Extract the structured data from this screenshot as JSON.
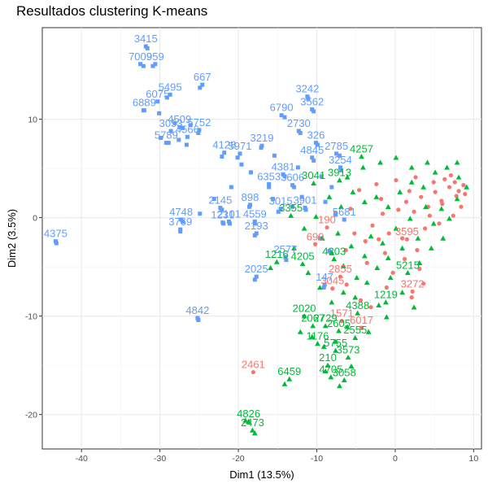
{
  "chart_data": {
    "type": "scatter",
    "title": "Resultados clustering K-means",
    "xlabel": "Dim1 (13.5%)",
    "ylabel": "Dim2 (3.5%)",
    "xlim": [
      -45,
      11
    ],
    "ylim": [
      -23.5,
      19.3
    ],
    "x_ticks": [
      -40,
      -30,
      -20,
      -10,
      0,
      10
    ],
    "y_ticks": [
      -20,
      -10,
      0,
      10
    ],
    "grid": true,
    "legend": "none",
    "clusters": [
      {
        "color": "#F8766D",
        "shape": "circle",
        "labeled_points": [
          {
            "x": -18.1,
            "y": -15.7,
            "label": "2461"
          },
          {
            "x": -10.2,
            "y": -2.7,
            "label": "690"
          },
          {
            "x": -7.0,
            "y": -6.0,
            "label": "2855"
          },
          {
            "x": -8.0,
            "y": -7.2,
            "label": "3045"
          },
          {
            "x": -6.8,
            "y": -10.5,
            "label": "1571"
          },
          {
            "x": -4.3,
            "y": -11.2,
            "label": "6017"
          },
          {
            "x": 1.5,
            "y": -2.2,
            "label": "3595"
          },
          {
            "x": 2.2,
            "y": -7.5,
            "label": "3272"
          },
          {
            "x": -8.7,
            "y": -1.0,
            "label": "190"
          }
        ],
        "unlabeled_points": [
          [
            -5.2,
            -1.6
          ],
          [
            -3.8,
            -2.4
          ],
          [
            -2.9,
            -0.8
          ],
          [
            -1.6,
            0.4
          ],
          [
            -0.8,
            -1.6
          ],
          [
            0.4,
            0.8
          ],
          [
            1.4,
            1.6
          ],
          [
            2.4,
            0.6
          ],
          [
            3.3,
            2.1
          ],
          [
            4.2,
            1.1
          ],
          [
            5.1,
            2.6
          ],
          [
            6.0,
            1.4
          ],
          [
            6.9,
            3.1
          ],
          [
            7.8,
            2.2
          ],
          [
            8.7,
            3.3
          ],
          [
            -4.6,
            2.8
          ],
          [
            -2.4,
            3.4
          ],
          [
            0.1,
            3.8
          ],
          [
            2.6,
            4.1
          ],
          [
            4.9,
            3.6
          ],
          [
            7.1,
            4.3
          ],
          [
            8.4,
            1.1
          ],
          [
            -3.6,
            -4.6
          ],
          [
            -1.3,
            -3.6
          ],
          [
            1.2,
            -4.2
          ],
          [
            3.1,
            -5.2
          ],
          [
            3.6,
            -6.7
          ],
          [
            2.1,
            -8.1
          ],
          [
            -1.1,
            -7.1
          ],
          [
            -3.1,
            -9.1
          ],
          [
            -6.2,
            -6.8
          ],
          [
            -4.4,
            -8.4
          ],
          [
            5.6,
            -0.6
          ],
          [
            7.4,
            0.2
          ],
          [
            -7.6,
            0.5
          ],
          [
            -6.3,
            -3.3
          ],
          [
            0.9,
            -2.1
          ],
          [
            3.8,
            -1.1
          ],
          [
            6.3,
            3.9
          ],
          [
            8.1,
            2.7
          ],
          [
            -1.8,
            1.9
          ],
          [
            1.8,
            2.7
          ],
          [
            4.4,
            0.2
          ],
          [
            -0.3,
            -5.6
          ],
          [
            2.8,
            -3.3
          ],
          [
            -5.7,
            0.9
          ],
          [
            -2.1,
            -2.2
          ],
          [
            5.9,
            1.7
          ],
          [
            7.6,
            3.6
          ],
          [
            8.9,
            2.4
          ]
        ]
      },
      {
        "color": "#00BA38",
        "shape": "triangle",
        "labeled_points": [
          {
            "x": -13.3,
            "y": 0.2,
            "label": "3355"
          },
          {
            "x": -15.1,
            "y": -4.5,
            "label": "1216"
          },
          {
            "x": -11.6,
            "y": -10.0,
            "label": "2020"
          },
          {
            "x": -10.5,
            "y": -11.0,
            "label": "2067"
          },
          {
            "x": -9.9,
            "y": -12.8,
            "label": "1176"
          },
          {
            "x": -8.9,
            "y": -11.0,
            "label": "2729"
          },
          {
            "x": -7.2,
            "y": -11.5,
            "label": "2605"
          },
          {
            "x": -5.1,
            "y": -12.2,
            "label": "2555"
          },
          {
            "x": -7.6,
            "y": -13.5,
            "label": "5755"
          },
          {
            "x": -6.0,
            "y": -14.2,
            "label": "3573"
          },
          {
            "x": -8.6,
            "y": -15.0,
            "label": "210"
          },
          {
            "x": -8.2,
            "y": -16.2,
            "label": "4705"
          },
          {
            "x": -6.5,
            "y": -16.5,
            "label": "3058"
          },
          {
            "x": -13.5,
            "y": -16.4,
            "label": "6459"
          },
          {
            "x": -18.7,
            "y": -20.7,
            "label": "4826"
          },
          {
            "x": -18.2,
            "y": -21.6,
            "label": "2473"
          },
          {
            "x": -11.8,
            "y": -4.7,
            "label": "4205"
          },
          {
            "x": -10.4,
            "y": 3.5,
            "label": "3041"
          },
          {
            "x": -7.1,
            "y": 3.8,
            "label": "3913"
          },
          {
            "x": -4.3,
            "y": 6.2,
            "label": "4257"
          },
          {
            "x": 1.6,
            "y": -5.6,
            "label": "5215"
          },
          {
            "x": -7.8,
            "y": -4.2,
            "label": "4303"
          },
          {
            "x": -4.8,
            "y": -9.7,
            "label": "4388"
          },
          {
            "x": -1.2,
            "y": -8.6,
            "label": "1219"
          }
        ],
        "unlabeled_points": [
          [
            -9.3,
            -2.1
          ],
          [
            -8.1,
            -3.6
          ],
          [
            -7.3,
            -1.6
          ],
          [
            -6.6,
            -4.9
          ],
          [
            -5.6,
            -2.9
          ],
          [
            -4.9,
            -6.1
          ],
          [
            -3.9,
            -3.9
          ],
          [
            -3.1,
            -1.9
          ],
          [
            -2.3,
            -5.1
          ],
          [
            -1.6,
            -2.6
          ],
          [
            -0.9,
            -4.1
          ],
          [
            0.1,
            -1.1
          ],
          [
            0.9,
            -3.1
          ],
          [
            1.9,
            -0.1
          ],
          [
            2.9,
            -2.1
          ],
          [
            3.9,
            1.1
          ],
          [
            4.9,
            -0.6
          ],
          [
            5.9,
            0.9
          ],
          [
            6.9,
            -0.1
          ],
          [
            7.9,
            1.9
          ],
          [
            -8.4,
            2.1
          ],
          [
            -6.9,
            1.1
          ],
          [
            -5.4,
            2.6
          ],
          [
            -3.9,
            1.6
          ],
          [
            -2.4,
            2.1
          ],
          [
            -0.9,
            1.1
          ],
          [
            0.6,
            2.6
          ],
          [
            2.1,
            3.6
          ],
          [
            3.6,
            3.1
          ],
          [
            5.1,
            4.6
          ],
          [
            6.6,
            5.1
          ],
          [
            8.1,
            4.1
          ],
          [
            9.1,
            3.1
          ],
          [
            -11.1,
            -5.6
          ],
          [
            -9.6,
            -7.1
          ],
          [
            -8.1,
            -8.6
          ],
          [
            -6.6,
            -7.6
          ],
          [
            -5.1,
            -8.1
          ],
          [
            -3.6,
            -6.6
          ],
          [
            -2.1,
            -8.9
          ],
          [
            -0.6,
            -6.1
          ],
          [
            0.9,
            -7.6
          ],
          [
            -12.1,
            -11.6
          ],
          [
            -10.6,
            -12.1
          ],
          [
            -9.1,
            -13.1
          ],
          [
            -7.6,
            -12.6
          ],
          [
            -6.1,
            -11.1
          ],
          [
            -8.9,
            -15.6
          ],
          [
            -7.1,
            -17.1
          ],
          [
            -5.6,
            -15.1
          ],
          [
            -6.1,
            4.1
          ],
          [
            -4.1,
            5.1
          ],
          [
            -1.9,
            5.6
          ],
          [
            0.1,
            6.1
          ],
          [
            2.1,
            5.1
          ],
          [
            4.1,
            5.6
          ],
          [
            7.9,
            5.6
          ],
          [
            3.1,
            -4.6
          ],
          [
            4.6,
            -3.1
          ],
          [
            6.1,
            -2.1
          ],
          [
            -10.1,
            0.1
          ],
          [
            -11.6,
            -1.1
          ],
          [
            -12.9,
            -3.1
          ],
          [
            -15.9,
            -5.1
          ],
          [
            -17.9,
            -21.9
          ],
          [
            -19.1,
            -20.6
          ],
          [
            -14.1,
            -16.9
          ],
          [
            -1.1,
            -10.1
          ],
          [
            2.4,
            -9.1
          ],
          [
            -3.4,
            -11.6
          ]
        ]
      },
      {
        "color": "#619CFF",
        "shape": "square",
        "labeled_points": [
          {
            "x": -31.8,
            "y": 17.4,
            "label": "3415"
          },
          {
            "x": -32.5,
            "y": 15.6,
            "label": "7009"
          },
          {
            "x": -30.6,
            "y": 15.6,
            "label": "959"
          },
          {
            "x": -24.6,
            "y": 13.5,
            "label": "667"
          },
          {
            "x": -28.7,
            "y": 12.5,
            "label": "5495"
          },
          {
            "x": -30.3,
            "y": 11.8,
            "label": "6075"
          },
          {
            "x": -32.0,
            "y": 10.9,
            "label": "6889"
          },
          {
            "x": -27.5,
            "y": 9.2,
            "label": "4509"
          },
          {
            "x": -28.6,
            "y": 8.8,
            "label": "3053"
          },
          {
            "x": -25.0,
            "y": 8.9,
            "label": "5752"
          },
          {
            "x": -29.2,
            "y": 7.6,
            "label": "5789"
          },
          {
            "x": -26.5,
            "y": 8.2,
            "label": "4566"
          },
          {
            "x": -21.8,
            "y": 6.6,
            "label": "4128"
          },
          {
            "x": -19.8,
            "y": 6.5,
            "label": "5971"
          },
          {
            "x": -14.5,
            "y": 10.4,
            "label": "6790"
          },
          {
            "x": -11.2,
            "y": 12.3,
            "label": "3242"
          },
          {
            "x": -10.6,
            "y": 11.0,
            "label": "3562"
          },
          {
            "x": -12.3,
            "y": 8.8,
            "label": "2730"
          },
          {
            "x": -10.1,
            "y": 7.6,
            "label": "326"
          },
          {
            "x": -7.5,
            "y": 6.5,
            "label": "2785"
          },
          {
            "x": -17.0,
            "y": 7.3,
            "label": "3219"
          },
          {
            "x": -10.6,
            "y": 6.1,
            "label": "4845"
          },
          {
            "x": -7.0,
            "y": 5.1,
            "label": "3254"
          },
          {
            "x": -14.3,
            "y": 4.4,
            "label": "4381"
          },
          {
            "x": -13.1,
            "y": 3.3,
            "label": "3606"
          },
          {
            "x": -16.1,
            "y": 3.4,
            "label": "6353"
          },
          {
            "x": -22.3,
            "y": 1.0,
            "label": "2145"
          },
          {
            "x": -18.5,
            "y": 1.3,
            "label": "898"
          },
          {
            "x": -22.0,
            "y": -0.5,
            "label": "1231"
          },
          {
            "x": -14.6,
            "y": 0.9,
            "label": "3015"
          },
          {
            "x": -11.5,
            "y": 1.0,
            "label": "3901"
          },
          {
            "x": -17.9,
            "y": -0.4,
            "label": "4559"
          },
          {
            "x": -27.3,
            "y": -0.2,
            "label": "4748"
          },
          {
            "x": -27.4,
            "y": -1.2,
            "label": "3769"
          },
          {
            "x": -21.2,
            "y": -0.4,
            "label": "2101"
          },
          {
            "x": -17.7,
            "y": -1.6,
            "label": "2193"
          },
          {
            "x": -43.3,
            "y": -2.4,
            "label": "4375"
          },
          {
            "x": -14.0,
            "y": -4.0,
            "label": "2577"
          },
          {
            "x": -17.7,
            "y": -6.0,
            "label": "2025"
          },
          {
            "x": -25.2,
            "y": -10.2,
            "label": "4842"
          },
          {
            "x": -9.0,
            "y": -6.8,
            "label": "147"
          },
          {
            "x": -6.5,
            "y": -0.2,
            "label": "5681"
          }
        ],
        "unlabeled_points": [
          [
            -43.2,
            -2.6
          ],
          [
            -32.1,
            15.4
          ],
          [
            -30.9,
            15.4
          ],
          [
            -31.6,
            17.2
          ],
          [
            -24.9,
            13.2
          ],
          [
            -29.1,
            12.2
          ],
          [
            -30.1,
            10.6
          ],
          [
            -32.1,
            10.9
          ],
          [
            -28.1,
            9.6
          ],
          [
            -27.1,
            9.1
          ],
          [
            -26.1,
            9.4
          ],
          [
            -25.1,
            8.6
          ],
          [
            -29.9,
            8.1
          ],
          [
            -28.9,
            7.6
          ],
          [
            -27.6,
            7.9
          ],
          [
            -26.6,
            7.4
          ],
          [
            -22.1,
            6.2
          ],
          [
            -20.1,
            6.1
          ],
          [
            -19.6,
            5.4
          ],
          [
            -17.1,
            7.1
          ],
          [
            -14.1,
            10.2
          ],
          [
            -11.1,
            12.1
          ],
          [
            -10.4,
            10.8
          ],
          [
            -12.1,
            8.6
          ],
          [
            -9.9,
            7.4
          ],
          [
            -7.1,
            6.3
          ],
          [
            -10.4,
            5.8
          ],
          [
            -6.9,
            4.8
          ],
          [
            -14.1,
            4.2
          ],
          [
            -12.9,
            3.1
          ],
          [
            -16.1,
            3.1
          ],
          [
            -22.1,
            0.8
          ],
          [
            -18.6,
            1.1
          ],
          [
            -21.9,
            -0.6
          ],
          [
            -14.9,
            0.6
          ],
          [
            -11.4,
            0.8
          ],
          [
            -17.9,
            -0.6
          ],
          [
            -27.1,
            -0.4
          ],
          [
            -27.4,
            -1.4
          ],
          [
            -21.1,
            -0.6
          ],
          [
            -17.9,
            -1.8
          ],
          [
            -13.9,
            -4.3
          ],
          [
            -17.9,
            -6.3
          ],
          [
            -25.1,
            -10.4
          ],
          [
            -9.1,
            -7.1
          ],
          [
            -9.6,
            -2.1
          ],
          [
            -8.4,
            -3.4
          ],
          [
            -7.6,
            0.3
          ],
          [
            -8.9,
            1.6
          ],
          [
            -11.9,
            2.1
          ],
          [
            -13.1,
            1.1
          ],
          [
            -15.6,
            1.9
          ],
          [
            -9.4,
            4.2
          ],
          [
            -8.1,
            3.1
          ],
          [
            -12.4,
            5.1
          ],
          [
            -15.4,
            6.3
          ],
          [
            -18.4,
            4.6
          ],
          [
            -20.9,
            3.1
          ],
          [
            -23.1,
            1.9
          ],
          [
            -24.9,
            0.4
          ]
        ]
      }
    ]
  }
}
